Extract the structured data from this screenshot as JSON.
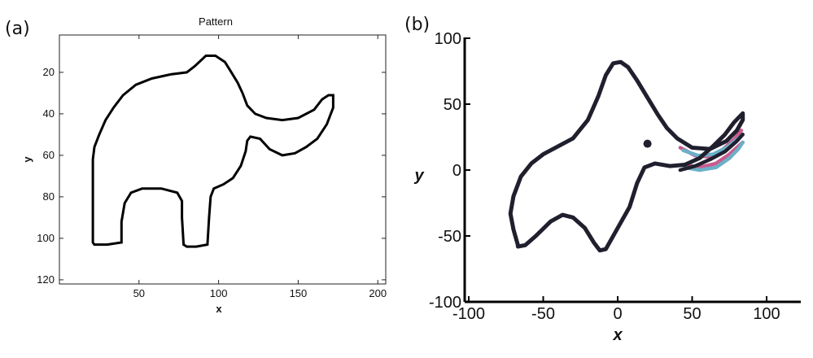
{
  "chart_data": [
    {
      "type": "line",
      "panel_label": "(a)",
      "title": "Pattern",
      "xlabel": "x",
      "ylabel": "y",
      "xlim": [
        0,
        205
      ],
      "ylim": [
        122,
        2
      ],
      "y_axis_reversed": true,
      "box": true,
      "grid": false,
      "xticks": [
        50,
        100,
        150,
        200
      ],
      "yticks": [
        20,
        40,
        60,
        80,
        100,
        120
      ],
      "series": [
        {
          "color": "#000000",
          "closed": true,
          "points": [
            [
              21,
              102
            ],
            [
              21,
              75
            ],
            [
              21,
              62
            ],
            [
              22,
              56
            ],
            [
              25,
              50
            ],
            [
              29,
              43
            ],
            [
              34,
              37
            ],
            [
              40,
              31
            ],
            [
              48,
              26
            ],
            [
              58,
              23
            ],
            [
              70,
              21
            ],
            [
              80,
              20
            ],
            [
              85,
              17
            ],
            [
              92,
              12
            ],
            [
              98,
              12
            ],
            [
              104,
              15
            ],
            [
              108,
              20
            ],
            [
              112,
              25
            ],
            [
              115,
              30
            ],
            [
              118,
              36
            ],
            [
              123,
              40
            ],
            [
              130,
              42
            ],
            [
              140,
              43
            ],
            [
              150,
              42
            ],
            [
              160,
              38
            ],
            [
              165,
              33
            ],
            [
              169,
              31
            ],
            [
              172,
              31
            ],
            [
              172,
              37
            ],
            [
              168,
              45
            ],
            [
              162,
              52
            ],
            [
              155,
              56
            ],
            [
              148,
              59
            ],
            [
              140,
              60
            ],
            [
              132,
              57
            ],
            [
              126,
              52
            ],
            [
              120,
              51
            ],
            [
              118,
              53
            ],
            [
              117,
              58
            ],
            [
              114,
              65
            ],
            [
              109,
              71
            ],
            [
              103,
              74
            ],
            [
              97,
              76
            ],
            [
              95,
              80
            ],
            [
              94,
              90
            ],
            [
              93,
              103
            ],
            [
              86,
              104
            ],
            [
              80,
              104
            ],
            [
              78,
              103
            ],
            [
              77,
              90
            ],
            [
              77,
              82
            ],
            [
              74,
              78
            ],
            [
              64,
              76
            ],
            [
              52,
              76
            ],
            [
              45,
              78
            ],
            [
              41,
              83
            ],
            [
              39,
              92
            ],
            [
              39,
              102
            ],
            [
              30,
              103
            ],
            [
              22,
              103
            ]
          ]
        }
      ]
    },
    {
      "type": "line",
      "panel_label": "(b)",
      "xlabel": "x",
      "ylabel": "y",
      "xlim": [
        -100,
        125
      ],
      "ylim": [
        -100,
        100
      ],
      "xticks": [
        -100,
        -50,
        0,
        50,
        100
      ],
      "yticks": [
        -100,
        -50,
        0,
        50,
        100
      ],
      "grid": false,
      "series": [
        {
          "color": "#1f1f2e",
          "closed": true,
          "points": [
            [
              -67,
              -57
            ],
            [
              -70,
              -45
            ],
            [
              -72,
              -33
            ],
            [
              -70,
              -20
            ],
            [
              -65,
              -5
            ],
            [
              -58,
              5
            ],
            [
              -50,
              12
            ],
            [
              -40,
              18
            ],
            [
              -30,
              24
            ],
            [
              -20,
              38
            ],
            [
              -13,
              56
            ],
            [
              -8,
              72
            ],
            [
              -3,
              81
            ],
            [
              2,
              82
            ],
            [
              7,
              78
            ],
            [
              13,
              68
            ],
            [
              20,
              55
            ],
            [
              27,
              42
            ],
            [
              33,
              32
            ],
            [
              40,
              24
            ],
            [
              50,
              17
            ],
            [
              62,
              16
            ],
            [
              73,
              22
            ],
            [
              80,
              30
            ],
            [
              84,
              38
            ],
            [
              84,
              43
            ],
            [
              78,
              36
            ],
            [
              72,
              27
            ],
            [
              64,
              18
            ],
            [
              55,
              9
            ],
            [
              45,
              4
            ],
            [
              35,
              3
            ],
            [
              25,
              5
            ],
            [
              18,
              2
            ],
            [
              13,
              -10
            ],
            [
              8,
              -28
            ],
            [
              -2,
              -48
            ],
            [
              -8,
              -60
            ],
            [
              -12,
              -61
            ],
            [
              -16,
              -55
            ],
            [
              -22,
              -44
            ],
            [
              -30,
              -36
            ],
            [
              -37,
              -34
            ],
            [
              -45,
              -39
            ],
            [
              -55,
              -50
            ],
            [
              -62,
              -57
            ],
            [
              -67,
              -58
            ]
          ]
        },
        {
          "color": "#cc5a8c",
          "points": [
            [
              42,
              17
            ],
            [
              52,
              11
            ],
            [
              62,
              10
            ],
            [
              71,
              16
            ],
            [
              78,
              23
            ],
            [
              83,
              30
            ]
          ]
        },
        {
          "color": "#cc5a8c",
          "points": [
            [
              45,
              4
            ],
            [
              55,
              2
            ],
            [
              66,
              5
            ],
            [
              75,
              12
            ],
            [
              81,
              18
            ],
            [
              84,
              21
            ]
          ]
        },
        {
          "color": "#6bb0c8",
          "points": [
            [
              44,
              15
            ],
            [
              54,
              11
            ],
            [
              64,
              12
            ],
            [
              73,
              17
            ],
            [
              80,
              23
            ],
            [
              83,
              26
            ]
          ]
        },
        {
          "color": "#6bb0c8",
          "points": [
            [
              45,
              2
            ],
            [
              55,
              0
            ],
            [
              66,
              2
            ],
            [
              75,
              9
            ],
            [
              81,
              16
            ],
            [
              84,
              21
            ]
          ]
        },
        {
          "color": "#1f1f2e",
          "points": [
            [
              42,
              0
            ],
            [
              52,
              3
            ],
            [
              62,
              8
            ],
            [
              72,
              14
            ],
            [
              80,
              22
            ],
            [
              84,
              27
            ]
          ]
        }
      ],
      "marker": {
        "x": 20,
        "y": 20,
        "color": "#1f1f2e"
      }
    }
  ]
}
